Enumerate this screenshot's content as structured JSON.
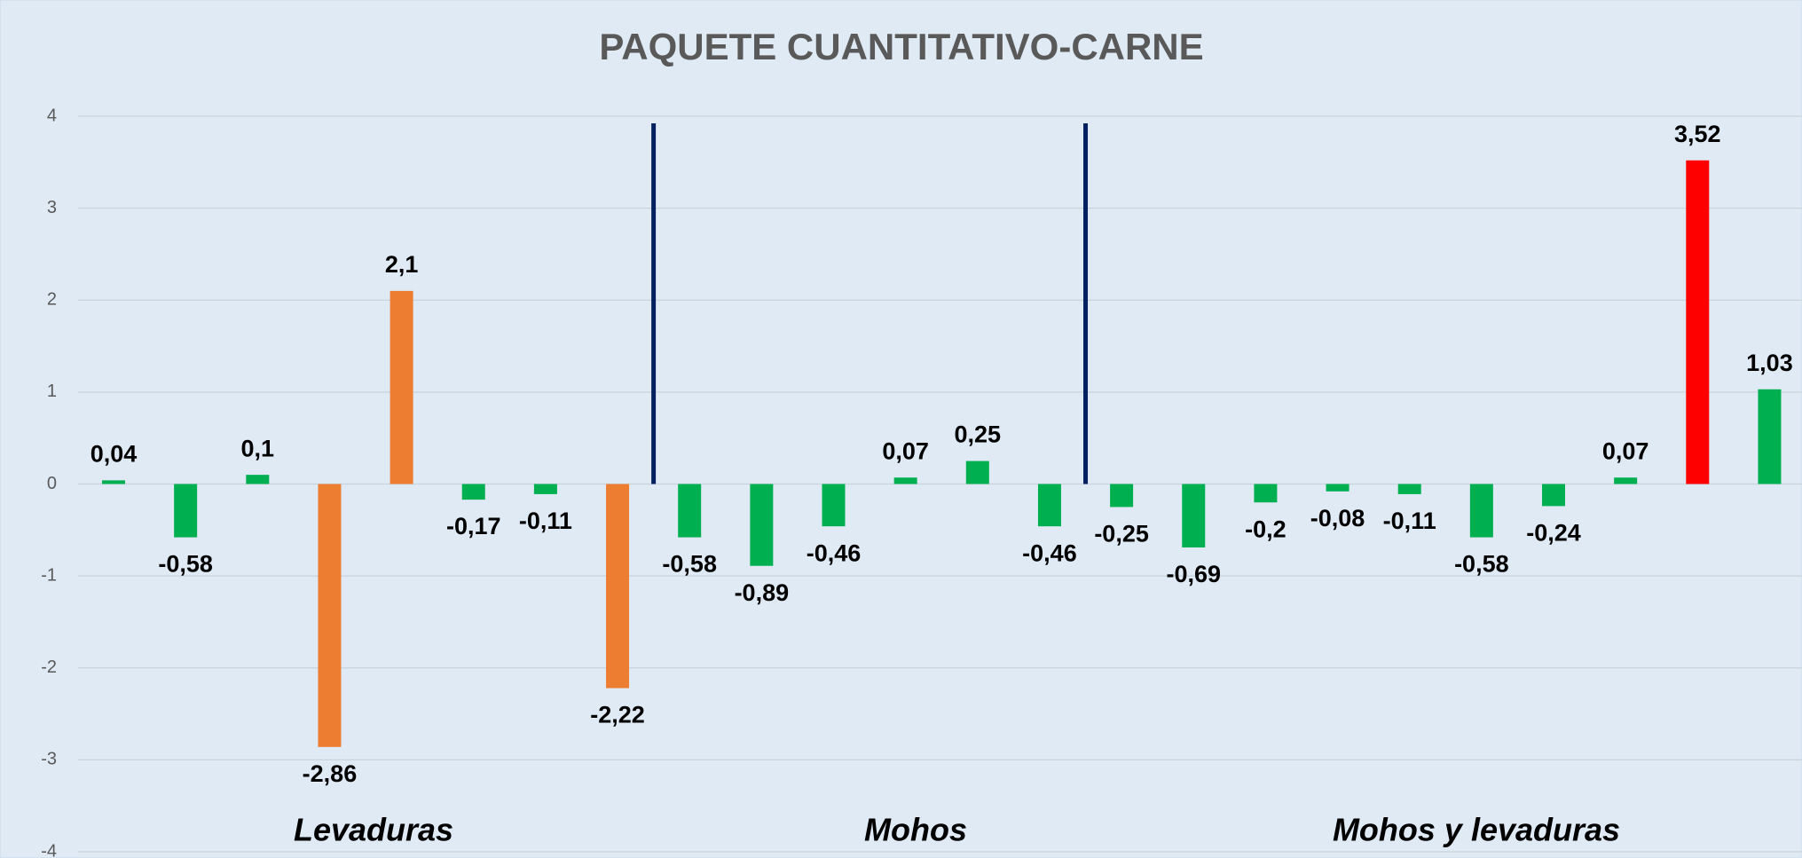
{
  "chart_data": {
    "type": "bar",
    "title": "PAQUETE CUANTITATIVO-CARNE",
    "values": [
      0.04,
      -0.58,
      0.1,
      -2.86,
      2.1,
      -0.17,
      -0.11,
      -2.22,
      -0.58,
      -0.89,
      -0.46,
      0.07,
      0.25,
      -0.46,
      -0.25,
      -0.69,
      -0.2,
      -0.08,
      -0.11,
      -0.58,
      -0.24,
      0.07,
      3.52,
      1.03
    ],
    "value_labels": [
      "0,04",
      "-0,58",
      "0,1",
      "-2,86",
      "2,1",
      "-0,17",
      "-0,11",
      "-2,22",
      "-0,58",
      "-0,89",
      "-0,46",
      "0,07",
      "0,25",
      "-0,46",
      "-0,25",
      "-0,69",
      "-0,2",
      "-0,08",
      "-0,11",
      "-0,58",
      "-0,24",
      "0,07",
      "3,52",
      "1,03"
    ],
    "colors": [
      "#00b050",
      "#00b050",
      "#00b050",
      "#ed7d31",
      "#ed7d31",
      "#00b050",
      "#00b050",
      "#ed7d31",
      "#00b050",
      "#00b050",
      "#00b050",
      "#00b050",
      "#00b050",
      "#00b050",
      "#00b050",
      "#00b050",
      "#00b050",
      "#00b050",
      "#00b050",
      "#00b050",
      "#00b050",
      "#00b050",
      "#ff0000",
      "#00b050"
    ],
    "annotations": [
      "Levaduras",
      "Mohos",
      "Mohos y levaduras"
    ],
    "ylim": [
      -4,
      4
    ],
    "yticks": [
      -4,
      -3,
      -2,
      -1,
      0,
      1,
      2,
      3,
      4
    ],
    "grid": true
  }
}
